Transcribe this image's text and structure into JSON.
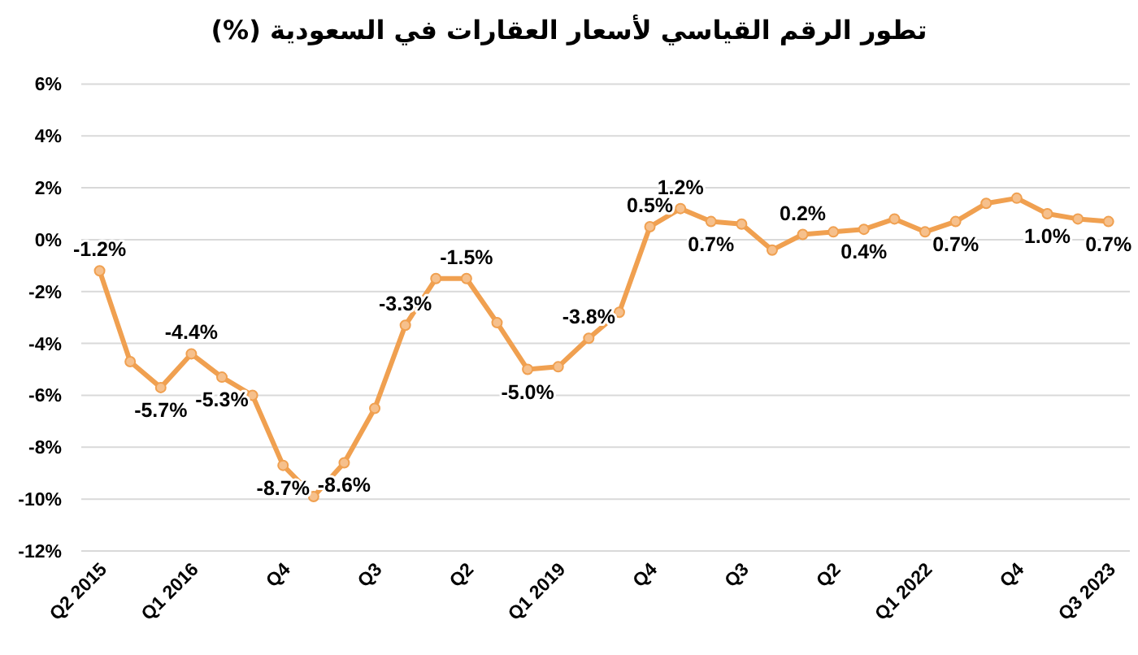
{
  "chart_data": {
    "type": "line",
    "title": "تطور الرقم القياسي لأسعار العقارات في السعودية (%)",
    "categories": [
      "Q2 2015",
      null,
      null,
      "Q1 2016",
      null,
      null,
      "Q4",
      null,
      null,
      "Q3",
      null,
      null,
      "Q2",
      null,
      null,
      "Q1 2019",
      null,
      null,
      "Q4",
      null,
      null,
      "Q3",
      null,
      null,
      "Q2",
      null,
      null,
      "Q1 2022",
      null,
      null,
      "Q4",
      null,
      null,
      "Q3 2023"
    ],
    "values": [
      -1.2,
      -4.7,
      -5.7,
      -4.4,
      -5.3,
      -6.0,
      -8.7,
      -9.9,
      -8.6,
      -6.5,
      -3.3,
      -1.5,
      -1.5,
      -3.2,
      -5.0,
      -4.9,
      -3.8,
      -2.8,
      0.5,
      1.2,
      0.7,
      0.6,
      -0.4,
      0.2,
      0.3,
      0.4,
      0.8,
      0.3,
      0.7,
      1.4,
      1.6,
      1.0,
      0.8,
      0.7
    ],
    "value_labels": [
      "-1.2%",
      null,
      "-5.7%",
      "-4.4%",
      "-5.3%",
      null,
      "-8.7%",
      null,
      "-8.6%",
      null,
      "-3.3%",
      null,
      "-1.5%",
      null,
      "-5.0%",
      null,
      "-3.8%",
      null,
      "0.5%",
      "1.2%",
      "0.7%",
      null,
      null,
      "0.2%",
      null,
      "0.4%",
      null,
      null,
      "0.7%",
      null,
      null,
      "1.0%",
      null,
      "0.7%"
    ],
    "color": "#f0a050",
    "ylim": [
      -12,
      6
    ],
    "yticks": [
      {
        "value": -12,
        "label": "-12%"
      },
      {
        "value": -10,
        "label": "-10%"
      },
      {
        "value": -8,
        "label": "-8%"
      },
      {
        "value": -6,
        "label": "-6%"
      },
      {
        "value": -4,
        "label": "-4%"
      },
      {
        "value": -2,
        "label": "-2%"
      },
      {
        "value": 0,
        "label": "0%"
      },
      {
        "value": 2,
        "label": "2%"
      },
      {
        "value": 4,
        "label": "4%"
      },
      {
        "value": 6,
        "label": "6%"
      }
    ],
    "grid": "y",
    "legend": false,
    "marker": "circle",
    "line_style": "solid"
  }
}
